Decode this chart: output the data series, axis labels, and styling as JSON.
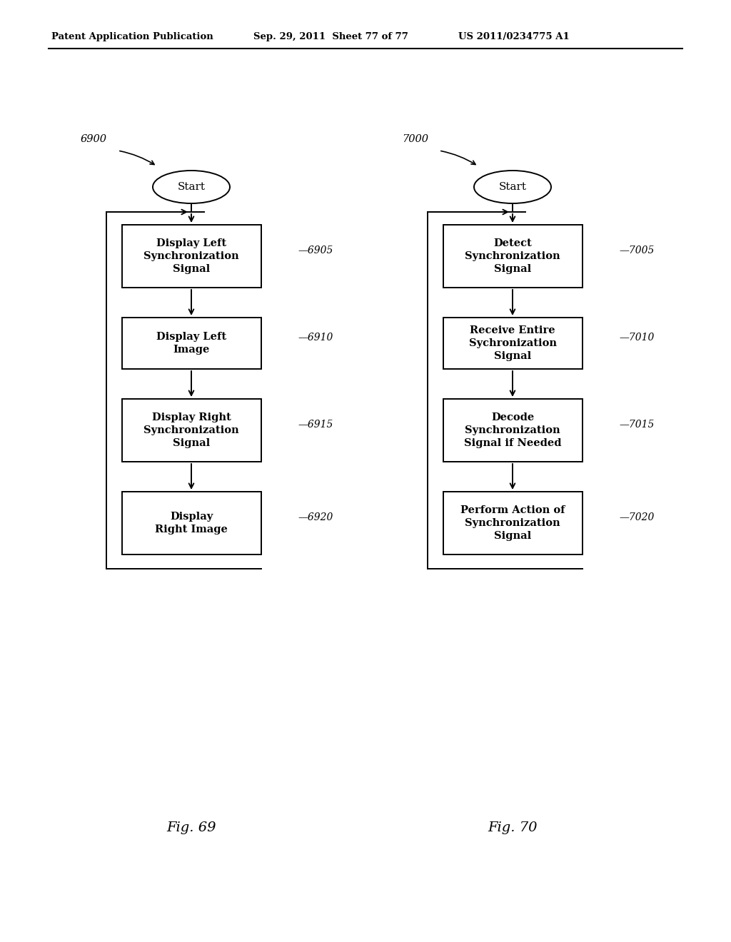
{
  "bg_color": "#ffffff",
  "header_left": "Patent Application Publication",
  "header_mid": "Sep. 29, 2011  Sheet 77 of 77",
  "header_right": "US 2011/0234775 A1",
  "fig69_caption": "Fig. 69",
  "fig70_caption": "Fig. 70",
  "left_diagram": {
    "ref_label": "6900",
    "start_text": "Start",
    "boxes": [
      {
        "text": "Display Left\nSynchronization\nSignal",
        "ref": "6905"
      },
      {
        "text": "Display Left\nImage",
        "ref": "6910"
      },
      {
        "text": "Display Right\nSynchronization\nSignal",
        "ref": "6915"
      },
      {
        "text": "Display\nRight Image",
        "ref": "6920"
      }
    ]
  },
  "right_diagram": {
    "ref_label": "7000",
    "start_text": "Start",
    "boxes": [
      {
        "text": "Detect\nSynchronization\nSignal",
        "ref": "7005"
      },
      {
        "text": "Receive Entire\nSychronization\nSignal",
        "ref": "7010"
      },
      {
        "text": "Decode\nSynchronization\nSignal if Needed",
        "ref": "7015"
      },
      {
        "text": "Perform Action of\nSynchronization\nSignal",
        "ref": "7020"
      }
    ]
  }
}
